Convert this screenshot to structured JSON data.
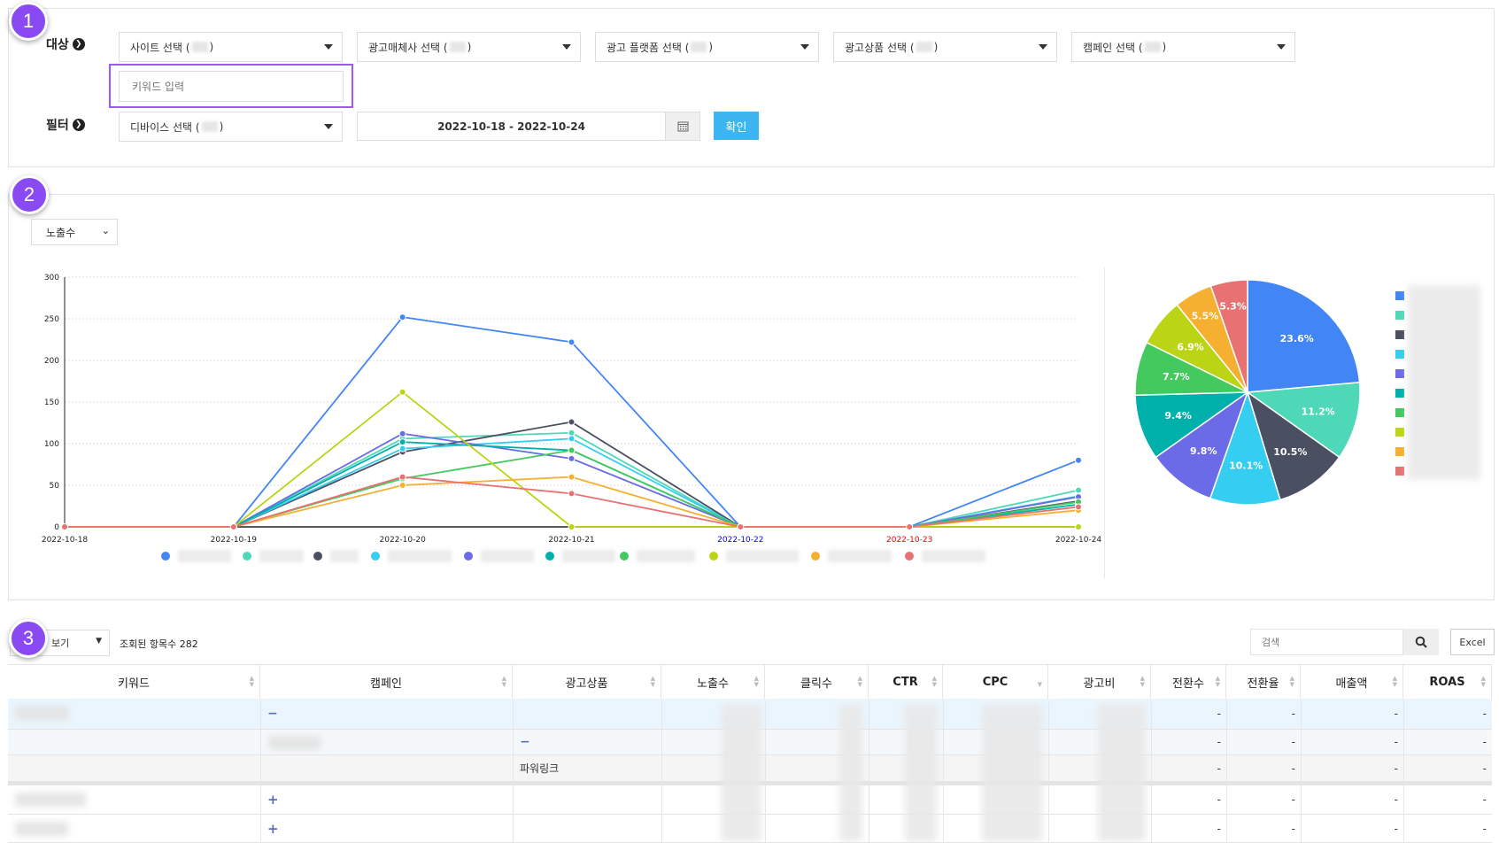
{
  "filters": {
    "target_label": "대상",
    "filter_label": "필터",
    "selects": [
      "사이트 선택 (",
      "광고매체사 선택 (",
      "광고 플랫폼 선택 (",
      "광고상품 선택 (",
      "캠페인 선택 ("
    ],
    "device_select": "디바이스 선택 (",
    "keyword_placeholder": "키워드 입력",
    "date_range": "2022-10-18 - 2022-10-24",
    "confirm_label": "확인",
    "confirm_color": "#3db5f0"
  },
  "badges": [
    "1",
    "2",
    "3"
  ],
  "chart_section": {
    "metric_select": "노출수"
  },
  "chart_data": [
    {
      "type": "line",
      "x": [
        "2022-10-18",
        "2022-10-19",
        "2022-10-20",
        "2022-10-21",
        "2022-10-22",
        "2022-10-23",
        "2022-10-24"
      ],
      "x_label_colors": [
        "#222",
        "#222",
        "#222",
        "#222",
        "#0000ee",
        "#ee0000",
        "#222"
      ],
      "ylim": [
        0,
        300
      ],
      "yticks": [
        0,
        50,
        100,
        150,
        200,
        250,
        300
      ],
      "grid": true,
      "legend": "bottom",
      "series": [
        {
          "color": "#4285f4",
          "values": [
            0,
            0,
            252,
            222,
            0,
            0,
            80
          ]
        },
        {
          "color": "#4fd8b8",
          "values": [
            0,
            0,
            106,
            113,
            0,
            0,
            44
          ]
        },
        {
          "color": "#4a4f61",
          "values": [
            0,
            0,
            90,
            126,
            0,
            0,
            31
          ]
        },
        {
          "color": "#35cdf0",
          "values": [
            0,
            0,
            94,
            106,
            0,
            0,
            37
          ]
        },
        {
          "color": "#6b6be8",
          "values": [
            0,
            0,
            112,
            82,
            0,
            0,
            36
          ]
        },
        {
          "color": "#00b0aa",
          "values": [
            0,
            0,
            102,
            92,
            0,
            0,
            27
          ]
        },
        {
          "color": "#43c95e",
          "values": [
            0,
            0,
            58,
            92,
            0,
            0,
            30
          ]
        },
        {
          "color": "#bcd416",
          "values": [
            0,
            0,
            162,
            0,
            0,
            0,
            0
          ]
        },
        {
          "color": "#f5b031",
          "values": [
            0,
            0,
            50,
            60,
            0,
            0,
            20
          ]
        },
        {
          "color": "#e87272",
          "values": [
            0,
            0,
            60,
            40,
            0,
            0,
            24
          ]
        }
      ]
    },
    {
      "type": "pie",
      "legend": "right",
      "values": [
        23.6,
        11.2,
        10.5,
        10.1,
        9.8,
        9.4,
        7.7,
        6.9,
        5.5,
        5.3
      ],
      "labels": [
        "23.6%",
        "11.2%",
        "10.5%",
        "10.1%",
        "9.8%",
        "9.4%",
        "7.7%",
        "6.9%",
        "5.5%",
        "5.3%"
      ],
      "colors": [
        "#4285f4",
        "#4fd8b8",
        "#4a4f61",
        "#35cdf0",
        "#6b6be8",
        "#00b0aa",
        "#43c95e",
        "#bcd416",
        "#f5b031",
        "#e87272"
      ]
    }
  ],
  "table_section": {
    "view_select": "보기",
    "count_text": "조회된 항목수 282",
    "search_placeholder": "검색",
    "excel_label": "Excel",
    "columns": [
      "키워드",
      "캠페인",
      "광고상품",
      "노출수",
      "클릭수",
      "CTR",
      "CPC",
      "광고비",
      "전환수",
      "전환율",
      "매출액",
      "ROAS"
    ],
    "rows": [
      {
        "campaign_icon": "minus",
        "product": "",
        "product_icon": "",
        "dash": "-"
      },
      {
        "campaign_icon": "",
        "product": "",
        "product_icon": "minus",
        "dash": "-"
      },
      {
        "campaign_icon": "",
        "product": "파워링크",
        "product_icon": "",
        "dash": "-"
      },
      {
        "campaign_icon": "plus",
        "product": "",
        "product_icon": "",
        "dash": "-"
      },
      {
        "campaign_icon": "plus",
        "product": "",
        "product_icon": "",
        "dash": "-"
      }
    ]
  }
}
